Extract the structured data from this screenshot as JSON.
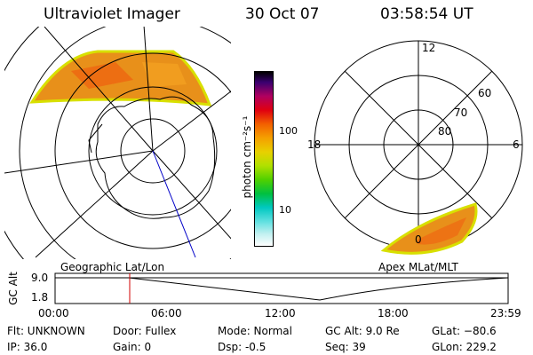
{
  "header": {
    "instrument": "Ultraviolet Imager",
    "date": "30 Oct 07",
    "time": "03:58:54 UT"
  },
  "panels": {
    "left_label": "Geographic Lat/Lon",
    "right_label": "Apex MLat/MLT",
    "right_mlt_labels": [
      "12",
      "18",
      "6",
      "0"
    ],
    "right_lat_labels": [
      "60",
      "70",
      "80"
    ]
  },
  "colorbar": {
    "unit_label": "photon cm⁻²s⁻¹",
    "ticks": [
      "100",
      "10"
    ]
  },
  "altitude_plot": {
    "ylabel": "GC Alt",
    "y_ticks": [
      "9.0",
      "1.8"
    ],
    "x_ticks": [
      "00:00",
      "06:00",
      "12:00",
      "18:00",
      "23:59"
    ],
    "marker_time": "03:58:54"
  },
  "info": {
    "flt": "Flt: UNKNOWN",
    "ip": "IP: 36.0",
    "door": "Door: Fullex",
    "gain": "Gain:  0",
    "mode": "Mode: Normal",
    "dsp": "Dsp:    -0.5",
    "gc_alt": "GC Alt: 9.0 Re",
    "seq": "Seq: 39",
    "glat": "GLat: −80.6",
    "glon": "GLon: 229.2"
  },
  "colors": {
    "aurora_fill": "#e8901a",
    "aurora_edge": "#d8e000",
    "aurora_hot": "#f06010",
    "marker": "#d00000",
    "meridian": "#0000c8"
  }
}
